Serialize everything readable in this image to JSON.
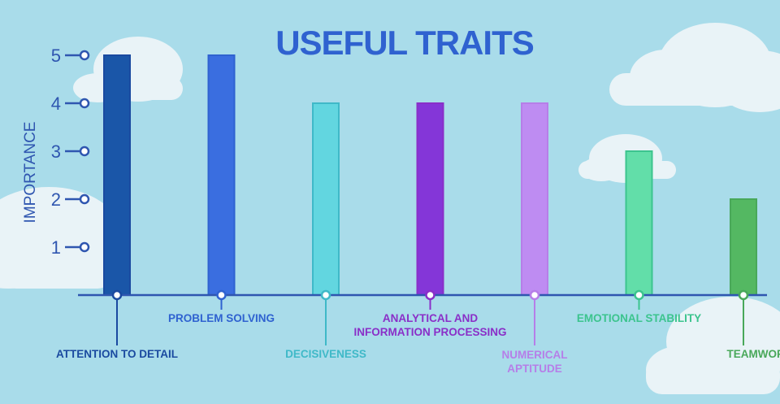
{
  "chart_data": {
    "type": "bar",
    "title": "USEFUL TRAITS",
    "ylabel": "IMPORTANCE",
    "xlabel": "",
    "ylim": [
      0,
      5
    ],
    "yticks": [
      1,
      2,
      3,
      4,
      5
    ],
    "grid": false,
    "legend": "none",
    "categories": [
      "ATTENTION TO DETAIL",
      "PROBLEM SOLVING",
      "DECISIVENESS",
      "ANALYTICAL AND INFORMATION PROCESSING",
      "NUMERICAL APTITUDE",
      "EMOTIONAL STABILITY",
      "TEAMWORK"
    ],
    "values": [
      5,
      5,
      4,
      4,
      4,
      3,
      2
    ],
    "colors": [
      "#1a56a8",
      "#3a6ee0",
      "#62d6e0",
      "#8436d8",
      "#be8cf2",
      "#62dea9",
      "#54b862"
    ],
    "label_colors": [
      "#1a4aa0",
      "#2f62d0",
      "#3fb9c8",
      "#8a2fc8",
      "#b67ee8",
      "#3cc48e",
      "#49a85a"
    ],
    "background_color": "#a9dcea",
    "axis_color": "#2f56b0"
  }
}
